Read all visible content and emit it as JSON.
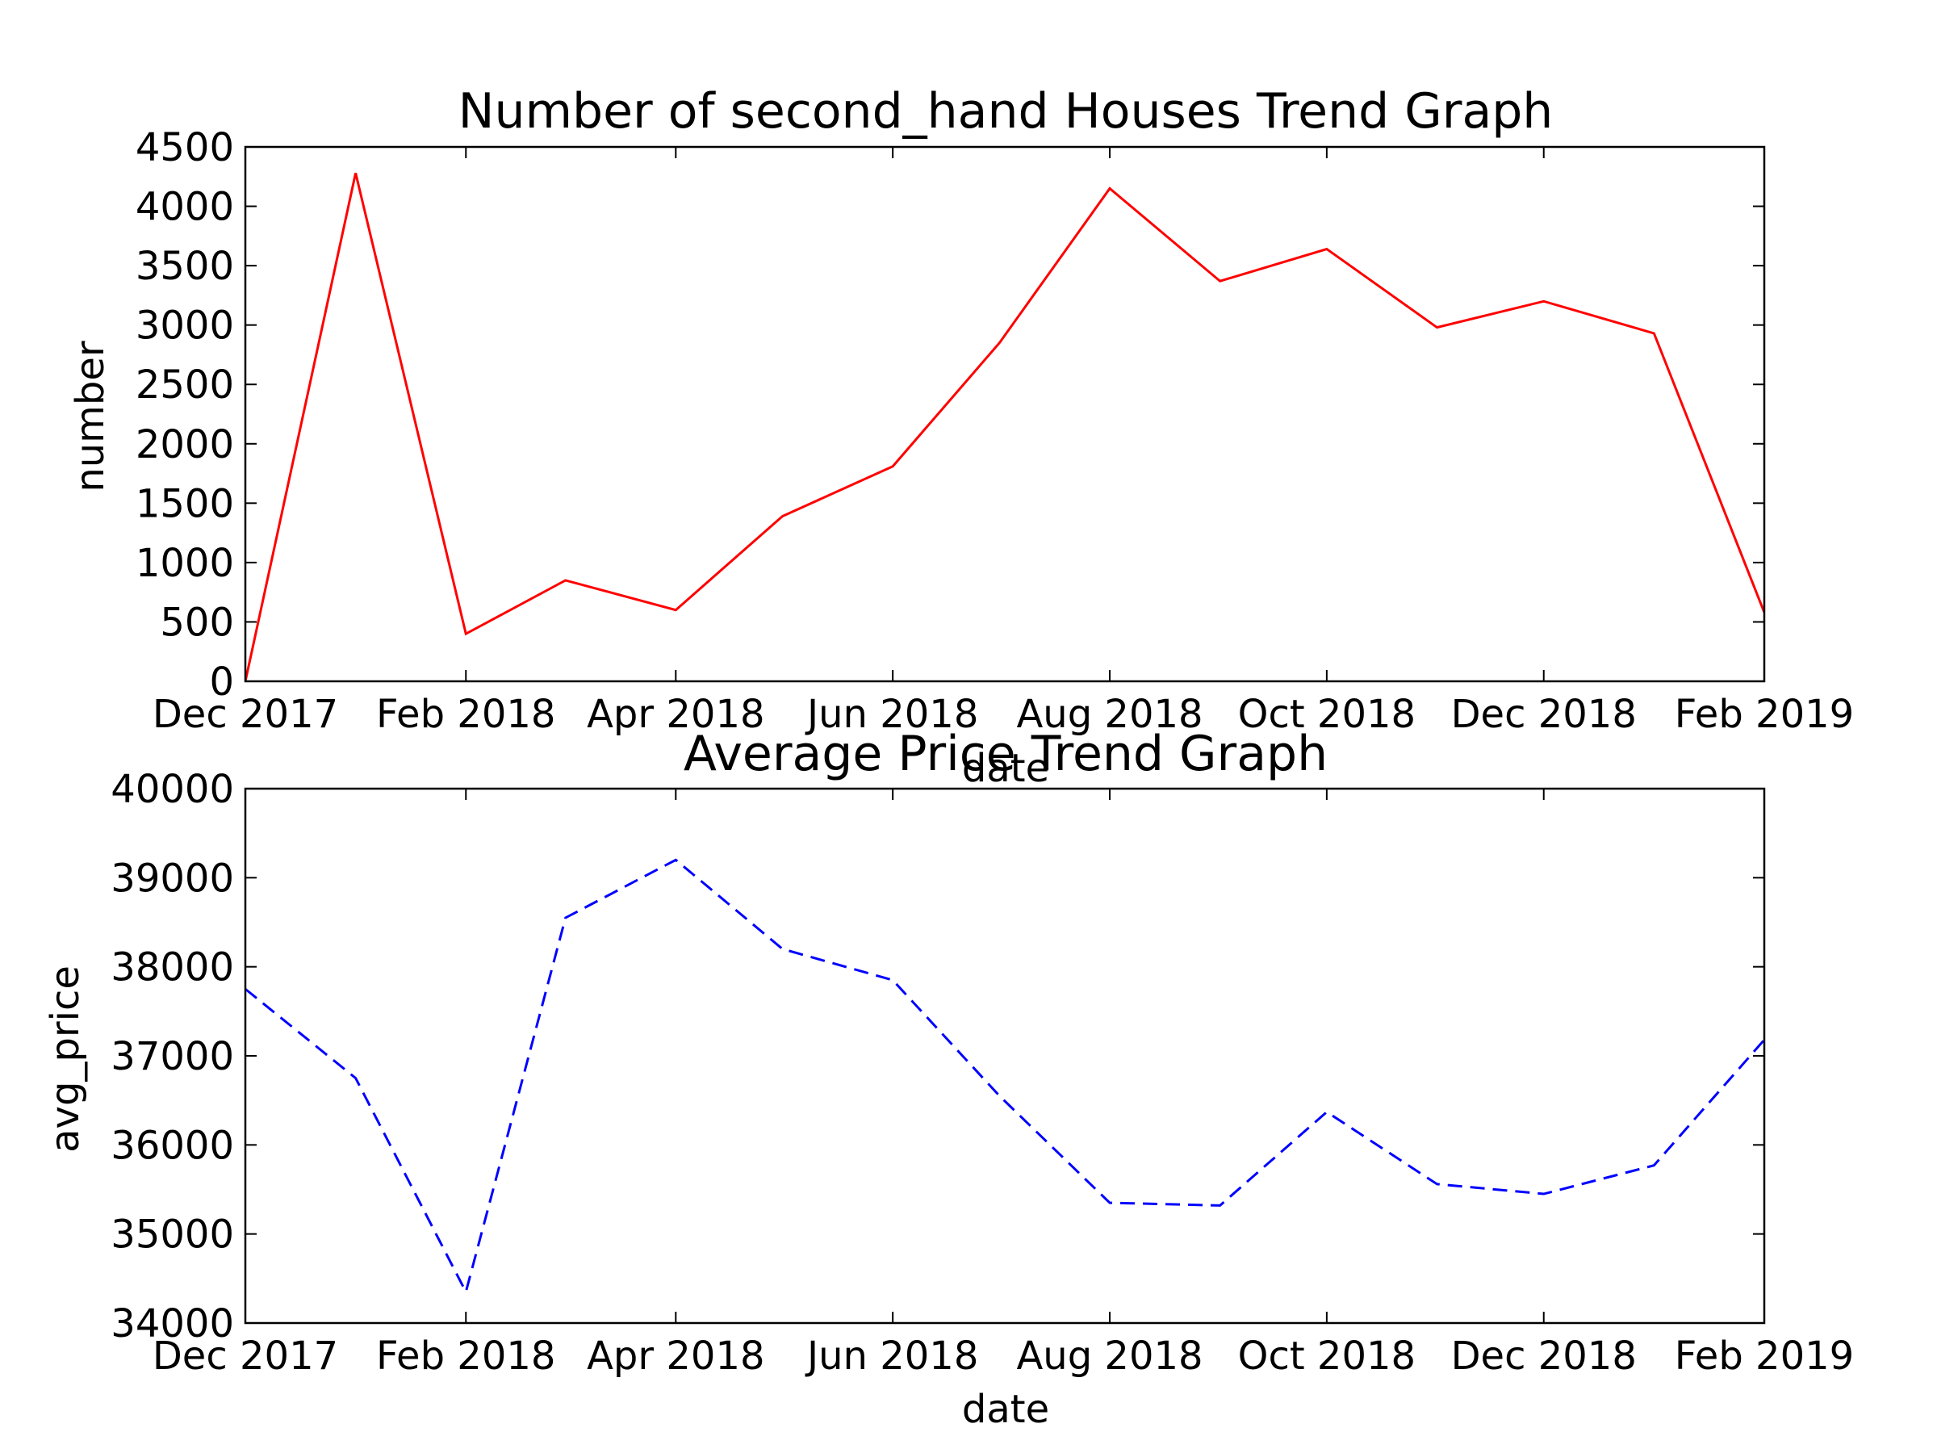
{
  "chart_data": [
    {
      "type": "line",
      "title": "Number of second_hand Houses Trend Graph",
      "xlabel": "date",
      "ylabel": "number",
      "x": [
        "2017-12-01",
        "2018-01-01",
        "2018-02-01",
        "2018-03-01",
        "2018-04-01",
        "2018-05-01",
        "2018-06-01",
        "2018-07-01",
        "2018-08-01",
        "2018-09-01",
        "2018-10-01",
        "2018-11-01",
        "2018-12-01",
        "2019-01-01",
        "2019-02-01"
      ],
      "series": [
        {
          "values": [
            0,
            4280,
            400,
            850,
            600,
            1390,
            1810,
            2850,
            4150,
            3370,
            3640,
            2980,
            3200,
            2930,
            580
          ],
          "color": "#ff0000",
          "line_style": "solid"
        }
      ],
      "xlim": [
        "2017-12-01",
        "2019-02-01"
      ],
      "ylim": [
        0,
        4500
      ],
      "x_ticks": [
        {
          "value": "2017-12-01",
          "label": "Dec 2017"
        },
        {
          "value": "2018-02-01",
          "label": "Feb 2018"
        },
        {
          "value": "2018-04-01",
          "label": "Apr 2018"
        },
        {
          "value": "2018-06-01",
          "label": "Jun 2018"
        },
        {
          "value": "2018-08-01",
          "label": "Aug 2018"
        },
        {
          "value": "2018-10-01",
          "label": "Oct 2018"
        },
        {
          "value": "2018-12-01",
          "label": "Dec 2018"
        },
        {
          "value": "2019-02-01",
          "label": "Feb 2019"
        }
      ],
      "y_ticks": [
        {
          "value": 0,
          "label": "0"
        },
        {
          "value": 500,
          "label": "500"
        },
        {
          "value": 1000,
          "label": "1000"
        },
        {
          "value": 1500,
          "label": "1500"
        },
        {
          "value": 2000,
          "label": "2000"
        },
        {
          "value": 2500,
          "label": "2500"
        },
        {
          "value": 3000,
          "label": "3000"
        },
        {
          "value": 3500,
          "label": "3500"
        },
        {
          "value": 4000,
          "label": "4000"
        },
        {
          "value": 4500,
          "label": "4500"
        }
      ],
      "grid": false,
      "legend": "none"
    },
    {
      "type": "line",
      "title": "Average Price Trend Graph",
      "xlabel": "date",
      "ylabel": "avg_price",
      "x": [
        "2017-12-01",
        "2018-01-01",
        "2018-02-01",
        "2018-03-01",
        "2018-04-01",
        "2018-05-01",
        "2018-06-01",
        "2018-07-01",
        "2018-08-01",
        "2018-09-01",
        "2018-10-01",
        "2018-11-01",
        "2018-12-01",
        "2019-01-01",
        "2019-02-01"
      ],
      "series": [
        {
          "values": [
            37750,
            36750,
            34350,
            38550,
            39200,
            38200,
            37850,
            36550,
            35350,
            35320,
            36370,
            35560,
            35450,
            35770,
            37180
          ],
          "color": "#0000ff",
          "line_style": "dashed"
        }
      ],
      "xlim": [
        "2017-12-01",
        "2019-02-01"
      ],
      "ylim": [
        34000,
        40000
      ],
      "x_ticks": [
        {
          "value": "2017-12-01",
          "label": "Dec 2017"
        },
        {
          "value": "2018-02-01",
          "label": "Feb 2018"
        },
        {
          "value": "2018-04-01",
          "label": "Apr 2018"
        },
        {
          "value": "2018-06-01",
          "label": "Jun 2018"
        },
        {
          "value": "2018-08-01",
          "label": "Aug 2018"
        },
        {
          "value": "2018-10-01",
          "label": "Oct 2018"
        },
        {
          "value": "2018-12-01",
          "label": "Dec 2018"
        },
        {
          "value": "2019-02-01",
          "label": "Feb 2019"
        }
      ],
      "y_ticks": [
        {
          "value": 34000,
          "label": "34000"
        },
        {
          "value": 35000,
          "label": "35000"
        },
        {
          "value": 36000,
          "label": "36000"
        },
        {
          "value": 37000,
          "label": "37000"
        },
        {
          "value": 38000,
          "label": "38000"
        },
        {
          "value": 39000,
          "label": "39000"
        },
        {
          "value": 40000,
          "label": "40000"
        }
      ],
      "grid": false,
      "legend": "none"
    }
  ]
}
